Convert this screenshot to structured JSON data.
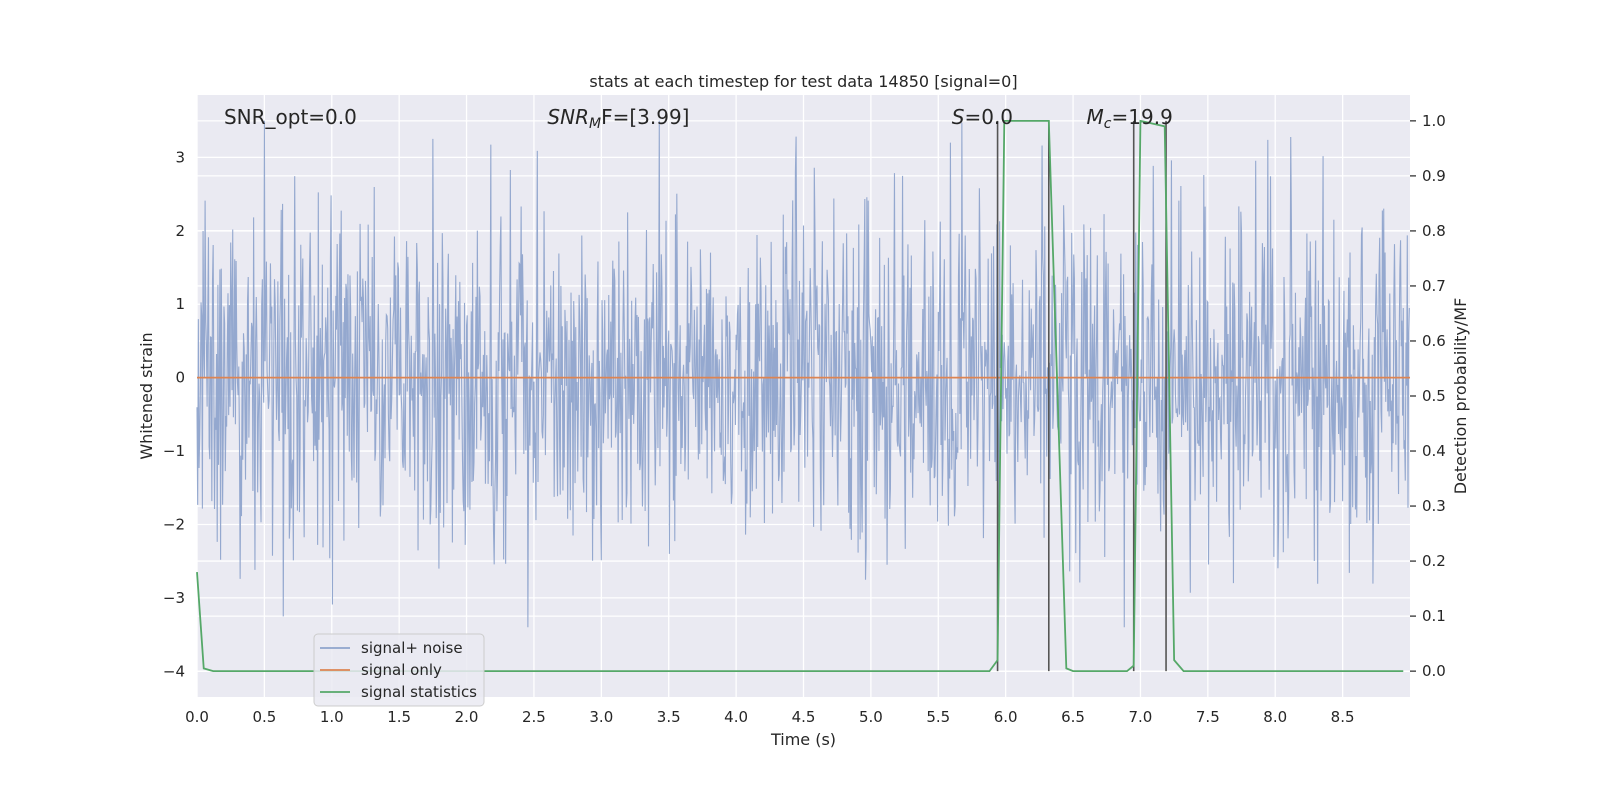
{
  "chart_data": {
    "type": "line",
    "title": "stats at each timestep for test data 14850 [signal=0]",
    "xlabel": "Time (s)",
    "ylabel": "Whitened strain",
    "ylabel_right": "Detection probability/MF",
    "xlim": [
      0.0,
      9.0
    ],
    "ylim": [
      -4.35,
      3.85
    ],
    "ylim_right": [
      -0.047,
      1.047
    ],
    "x_ticks": [
      0.0,
      0.5,
      1.0,
      1.5,
      2.0,
      2.5,
      3.0,
      3.5,
      4.0,
      4.5,
      5.0,
      5.5,
      6.0,
      6.5,
      7.0,
      7.5,
      8.0,
      8.5
    ],
    "x_tick_labels": [
      "0.0",
      "0.5",
      "1.0",
      "1.5",
      "2.0",
      "2.5",
      "3.0",
      "3.5",
      "4.0",
      "4.5",
      "5.0",
      "5.5",
      "6.0",
      "6.5",
      "7.0",
      "7.5",
      "8.0",
      "8.5"
    ],
    "y_ticks": [
      -4,
      -3,
      -2,
      -1,
      0,
      1,
      2,
      3
    ],
    "y_tick_labels": [
      "−4",
      "−3",
      "−2",
      "−1",
      "0",
      "1",
      "2",
      "3"
    ],
    "y_ticks_right": [
      0.0,
      0.1,
      0.2,
      0.3,
      0.4,
      0.5,
      0.6,
      0.7,
      0.8,
      0.9,
      1.0
    ],
    "y_tick_labels_right": [
      "0.0",
      "0.1",
      "0.2",
      "0.3",
      "0.4",
      "0.5",
      "0.6",
      "0.7",
      "0.8",
      "0.9",
      "1.0"
    ],
    "grid": true,
    "annotations": [
      {
        "text": "SNR_opt=0.0",
        "x": 0.2,
        "y": 3.55
      },
      {
        "text": "SNR",
        "sub": "M",
        "rest": "F=[3.99]",
        "x": 2.6,
        "y": 3.55
      },
      {
        "text": "S",
        "rest": "=0.0",
        "x": 5.6,
        "y": 3.55
      },
      {
        "text": "M",
        "sub": "c",
        "rest": "=19.9",
        "x": 6.6,
        "y": 3.55
      }
    ],
    "legend": {
      "position": "lower-left",
      "entries": [
        "signal+ noise",
        "signal only",
        "signal statistics"
      ]
    },
    "series": [
      {
        "name": "signal+ noise",
        "color": "#8fa4cc",
        "kind": "noise",
        "duration": 9.0,
        "n_samples": 1800,
        "amplitude_sd": 1.0,
        "envelope": [
          -3.4,
          3.5
        ]
      },
      {
        "name": "signal only",
        "color": "#dd8452",
        "kind": "line",
        "x": [
          0.0,
          9.0
        ],
        "y": [
          0.0,
          0.0
        ]
      },
      {
        "name": "signal statistics",
        "color": "#55a868",
        "axis": "right",
        "kind": "line",
        "x": [
          0.0,
          0.05,
          0.12,
          5.88,
          5.94,
          5.99,
          6.32,
          6.45,
          6.5,
          6.9,
          6.95,
          7.0,
          7.18,
          7.25,
          7.32,
          8.95
        ],
        "y": [
          0.18,
          0.005,
          0.0,
          0.0,
          0.02,
          1.0,
          1.0,
          0.005,
          0.0,
          0.0,
          0.01,
          1.0,
          0.99,
          0.02,
          0.0,
          0.0
        ]
      }
    ],
    "vertical_markers": {
      "color": "#555555",
      "axis": "right",
      "items": [
        {
          "x": 5.94,
          "y0": 0.0,
          "y1": 1.0
        },
        {
          "x": 6.32,
          "y0": 0.0,
          "y1": 1.0
        },
        {
          "x": 6.95,
          "y0": 0.0,
          "y1": 1.0
        },
        {
          "x": 7.19,
          "y0": 0.0,
          "y1": 1.0
        }
      ]
    },
    "colors": {
      "plot_background": "#eaeaf2",
      "grid": "#ffffff",
      "text": "#262626"
    }
  }
}
